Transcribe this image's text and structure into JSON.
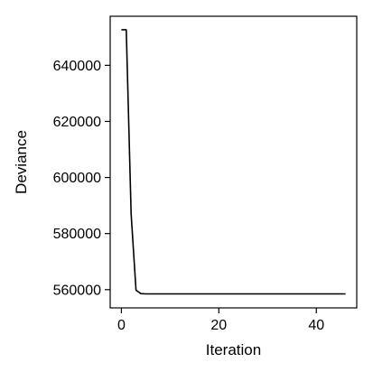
{
  "chart_data": {
    "type": "line",
    "xlabel": "Iteration",
    "ylabel": "Deviance",
    "xlim": [
      -2.3,
      48.3
    ],
    "ylim": [
      553500,
      657500
    ],
    "xticks": [
      0,
      20,
      40
    ],
    "xtick_labels": [
      "0",
      "20",
      "40"
    ],
    "yticks": [
      560000,
      580000,
      600000,
      620000,
      640000
    ],
    "ytick_labels": [
      "560000",
      "580000",
      "600000",
      "620000",
      "640000"
    ],
    "grid": false,
    "legend": "none",
    "series": [
      {
        "color": "#000000",
        "x": [
          0,
          1,
          2,
          3,
          4,
          5,
          6,
          7,
          8,
          9,
          10,
          11,
          12,
          13,
          14,
          15,
          16,
          17,
          18,
          19,
          20,
          21,
          22,
          23,
          24,
          25,
          26,
          27,
          28,
          29,
          30,
          31,
          32,
          33,
          34,
          35,
          36,
          37,
          38,
          39,
          40,
          41,
          42,
          43,
          44,
          45,
          46
        ],
        "y": [
          652700,
          652700,
          587000,
          559800,
          558600,
          558500,
          558500,
          558500,
          558500,
          558500,
          558500,
          558500,
          558500,
          558500,
          558500,
          558500,
          558500,
          558500,
          558500,
          558500,
          558500,
          558500,
          558500,
          558500,
          558500,
          558500,
          558500,
          558500,
          558500,
          558500,
          558500,
          558500,
          558500,
          558500,
          558500,
          558500,
          558500,
          558500,
          558500,
          558500,
          558500,
          558500,
          558500,
          558500,
          558500,
          558500,
          558500
        ]
      }
    ]
  }
}
